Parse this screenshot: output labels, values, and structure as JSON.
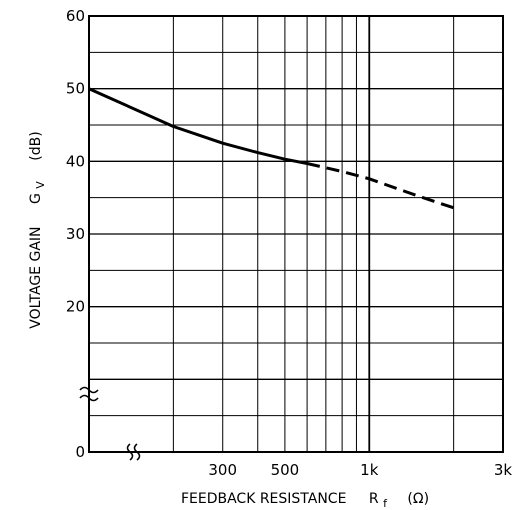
{
  "chart_data": {
    "type": "line",
    "title": "",
    "xlabel": {
      "text": "FEEDBACK RESISTANCE",
      "symbol": "R",
      "symbol_subscript": "f",
      "unit": "(Ω)"
    },
    "ylabel": {
      "text": "VOLTAGE GAIN",
      "symbol": "G",
      "symbol_subscript": "V",
      "unit": "(dB)"
    },
    "x_scale": "log",
    "xlim": [
      100,
      3000
    ],
    "ylim": [
      0,
      60
    ],
    "x_ticks": [
      {
        "value": 300,
        "label": "300"
      },
      {
        "value": 500,
        "label": "500"
      },
      {
        "value": 1000,
        "label": "1k"
      },
      {
        "value": 3000,
        "label": "3k"
      }
    ],
    "y_ticks": [
      {
        "value": 0,
        "label": "0"
      },
      {
        "value": 20,
        "label": "20"
      },
      {
        "value": 30,
        "label": "30"
      },
      {
        "value": 40,
        "label": "40"
      },
      {
        "value": 50,
        "label": "50"
      },
      {
        "value": 60,
        "label": "60"
      }
    ],
    "x_gridlines": [
      200,
      300,
      400,
      500,
      600,
      700,
      800,
      900,
      1000,
      2000,
      3000
    ],
    "y_gridlines": [
      5,
      10,
      15,
      20,
      25,
      30,
      35,
      40,
      45,
      50,
      55,
      60
    ],
    "axis_breaks": [
      "x",
      "y"
    ],
    "grid": true,
    "series": [
      {
        "style": "solid",
        "x": [
          100,
          200,
          300,
          400,
          500,
          600
        ],
        "y": [
          50.0,
          44.8,
          42.5,
          41.2,
          40.3,
          39.7
        ]
      },
      {
        "style": "dashed",
        "x": [
          600,
          800,
          1000,
          1500,
          2000
        ],
        "y": [
          39.7,
          38.6,
          37.6,
          35.2,
          33.6
        ]
      }
    ]
  }
}
